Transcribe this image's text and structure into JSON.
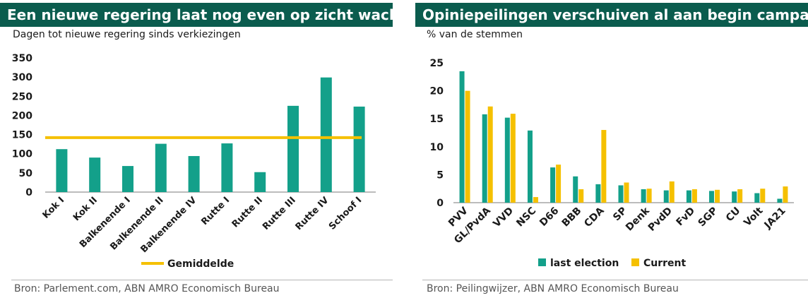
{
  "colors": {
    "header_bg": "#0b5c4e",
    "teal": "#13a08a",
    "yellow": "#f5c000"
  },
  "left_panel": {
    "title": "Een nieuwe regering laat nog even op zicht wachten",
    "subtitle": "Dagen tot nieuwe regering sinds verkiezingen",
    "source": "Bron: Parlement.com, ABN AMRO Economisch Bureau"
  },
  "right_panel": {
    "title": "Opiniepeilingen verschuiven al aan begin campagne",
    "subtitle": "% van de stemmen",
    "source": "Bron: Peilingwijzer, ABN AMRO Economisch Bureau"
  },
  "chart_data": [
    {
      "type": "bar",
      "categories": [
        "Kok I",
        "Kok II",
        "Balkenende I",
        "Balkenende II",
        "Balkenende IV",
        "Rutte I",
        "Rutte II",
        "Rutte III",
        "Rutte IV",
        "Schoof I"
      ],
      "values": [
        112,
        90,
        68,
        126,
        94,
        127,
        52,
        225,
        299,
        223
      ],
      "average": {
        "name": "Gemiddelde",
        "value": 142
      },
      "yticks": [
        0,
        50,
        100,
        150,
        200,
        250,
        300,
        350
      ],
      "ylim": [
        0,
        350
      ],
      "legend_position": "bottom",
      "grid": false
    },
    {
      "type": "bar",
      "categories": [
        "PVV",
        "GL/PvdA",
        "VVD",
        "NSC",
        "D66",
        "BBB",
        "CDA",
        "SP",
        "Denk",
        "PvdD",
        "FvD",
        "SGP",
        "CU",
        "Volt",
        "JA21"
      ],
      "series": [
        {
          "name": "last election",
          "values": [
            23.5,
            15.8,
            15.2,
            12.9,
            6.3,
            4.7,
            3.3,
            3.1,
            2.4,
            2.2,
            2.2,
            2.1,
            2.0,
            1.7,
            0.7
          ]
        },
        {
          "name": "Current",
          "values": [
            20.0,
            17.2,
            15.9,
            1.0,
            6.8,
            2.4,
            13.0,
            3.6,
            2.5,
            3.8,
            2.4,
            2.3,
            2.4,
            2.5,
            2.9
          ]
        }
      ],
      "yticks": [
        0,
        5,
        10,
        15,
        20,
        25
      ],
      "ylim": [
        0,
        25
      ],
      "legend_position": "bottom",
      "grid": false
    }
  ]
}
